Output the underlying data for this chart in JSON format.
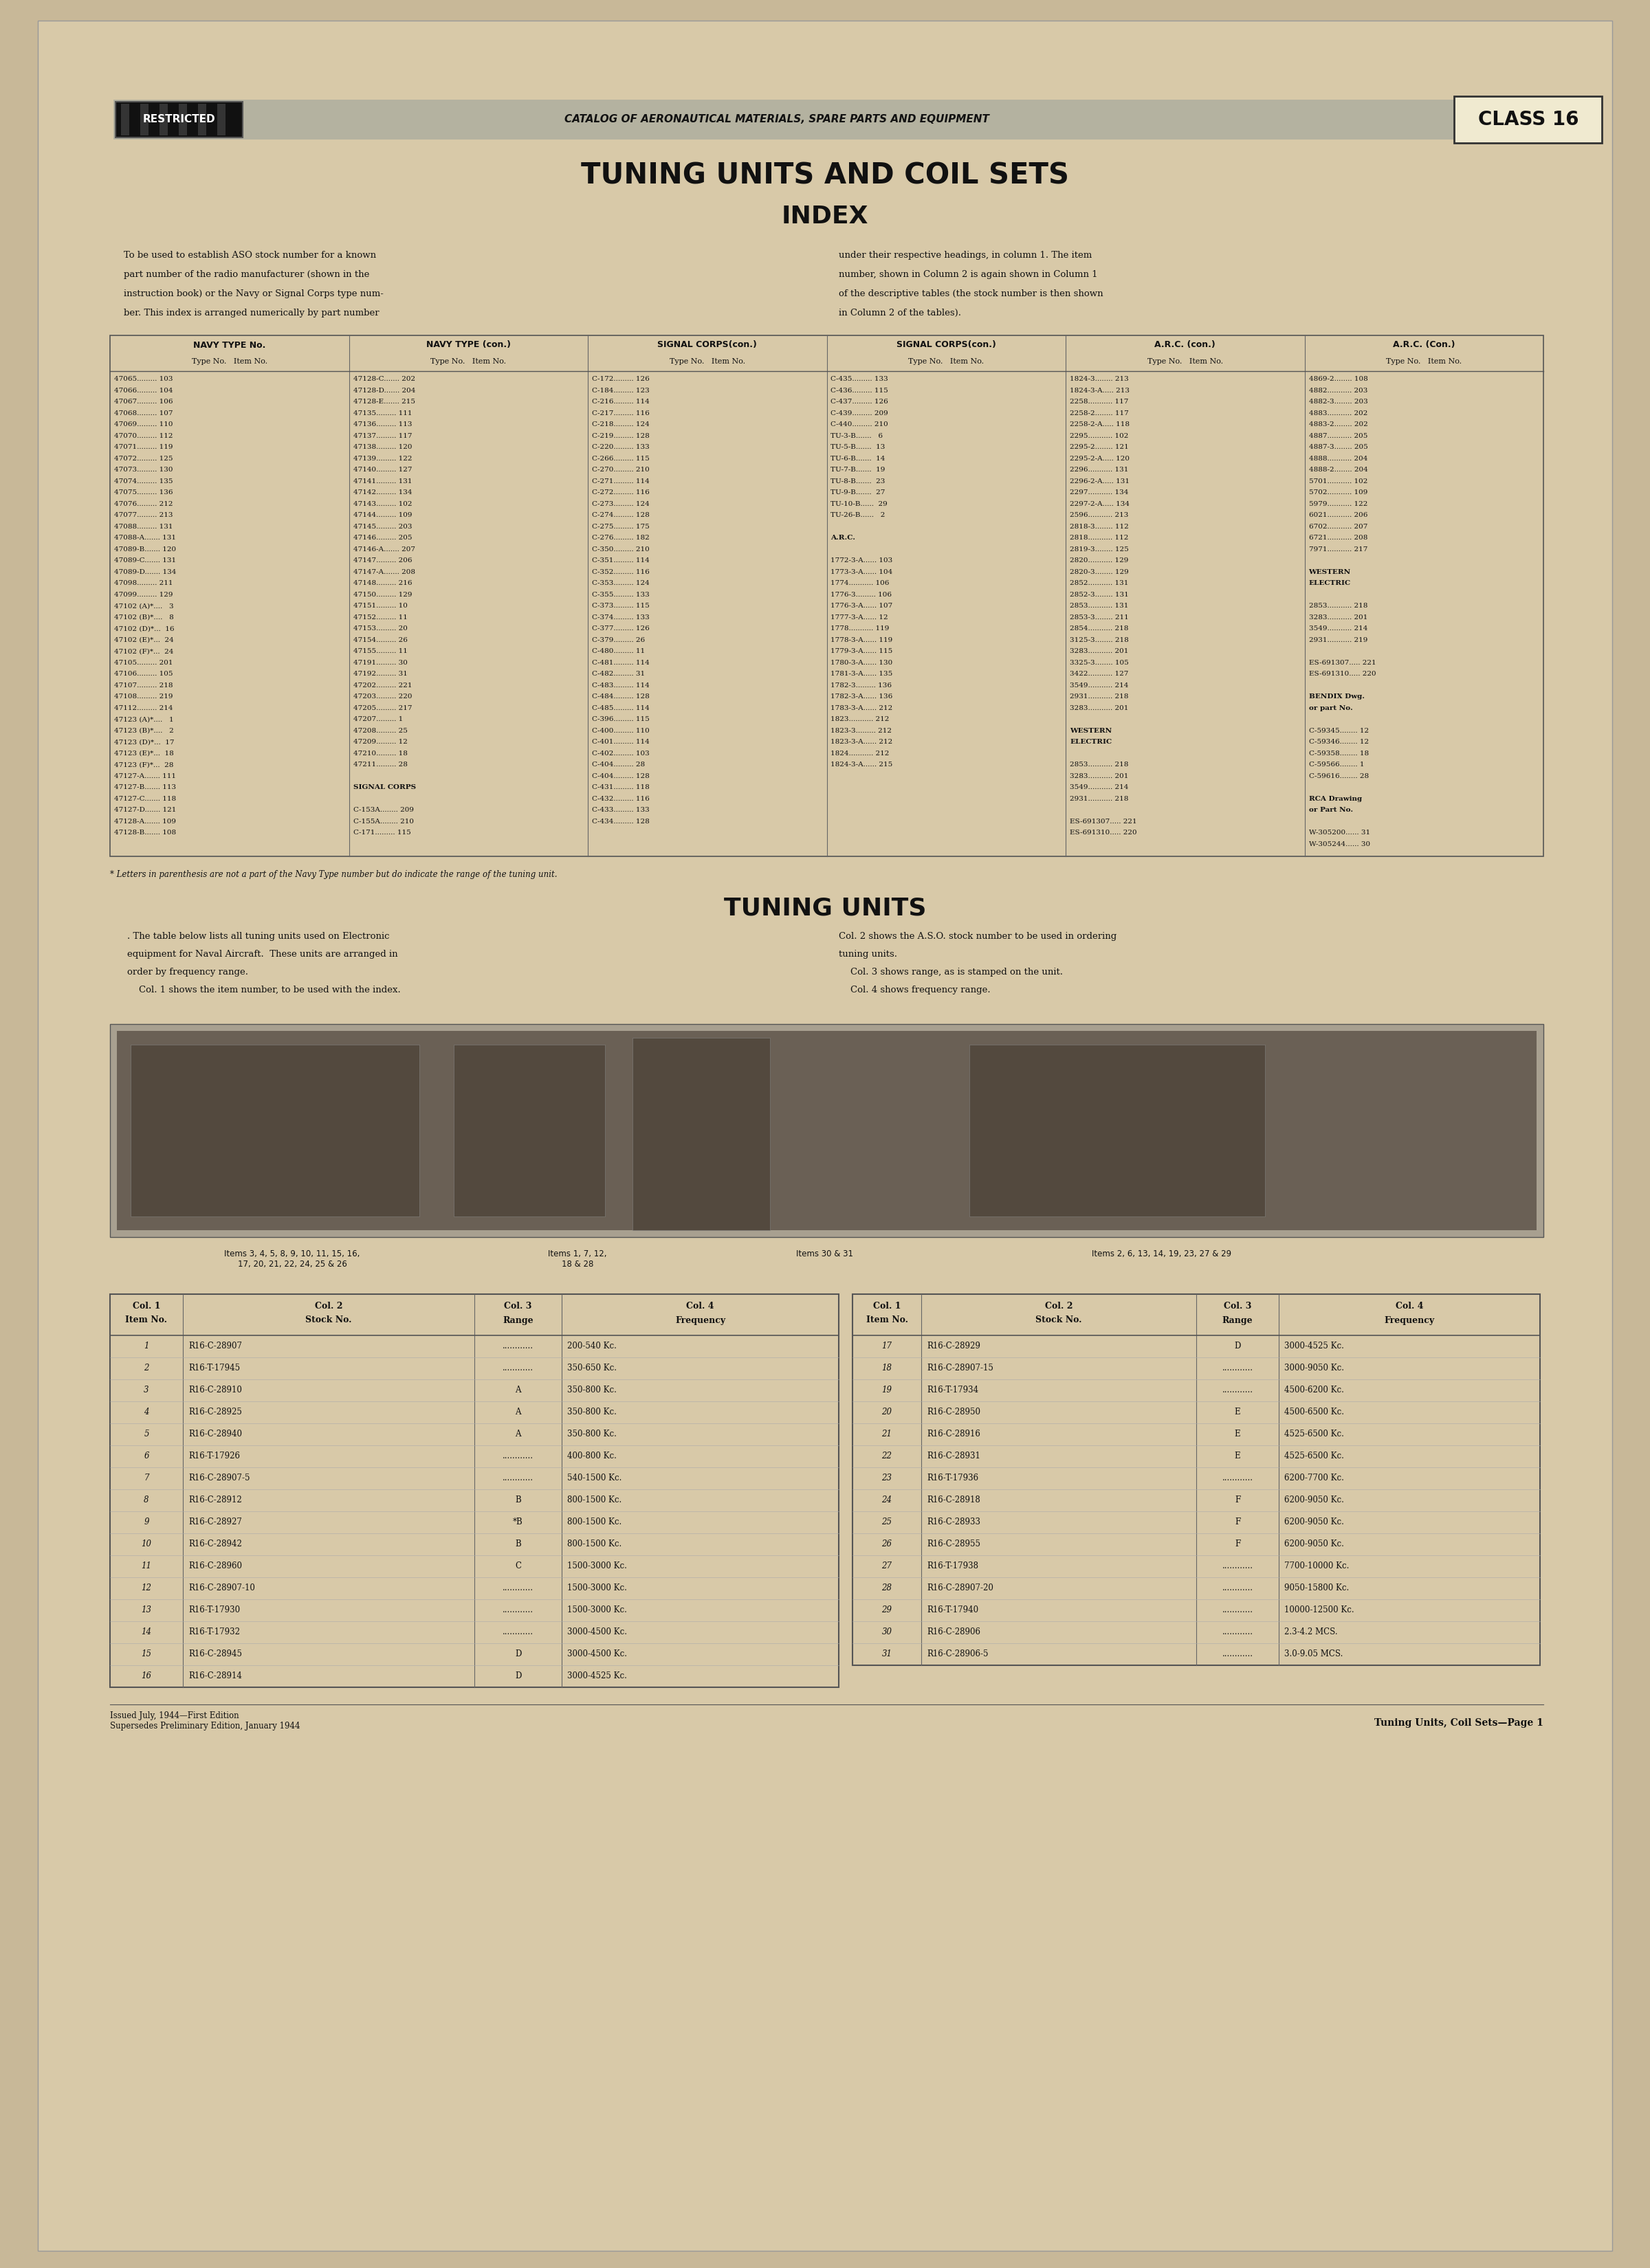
{
  "bg_color": "#c8b898",
  "paper_color": "#d8c9a8",
  "text_color": "#111111",
  "restricted_text": "RESTRICTED",
  "catalog_text": "CATALOG OF AERONAUTICAL MATERIALS, SPARE PARTS AND EQUIPMENT",
  "class_text": "CLASS 16",
  "title_main": "TUNING UNITS AND COIL SETS",
  "title_index": "INDEX",
  "title_tuning": "TUNING UNITS",
  "index_para1_lines": [
    "To be used to establish ASO stock number for a known",
    "part number of the radio manufacturer (shown in the",
    "instruction book) or the Navy or Signal Corps type num-",
    "ber. This index is arranged numerically by part number"
  ],
  "index_para2_lines": [
    "under their respective headings, in column 1. The item",
    "number, shown in Column 2 is again shown in Column 1",
    "of the descriptive tables (the stock number is then shown",
    "in Column 2 of the tables)."
  ],
  "table_headers": [
    "NAVY TYPE No.",
    "NAVY TYPE (con.)",
    "SIGNAL CORPS(con.)",
    "SIGNAL CORPS(con.)",
    "A.R.C. (con.)",
    "A.R.C. (Con.)"
  ],
  "col1_data": [
    "47065......... 103",
    "47066......... 104",
    "47067......... 106",
    "47068......... 107",
    "47069......... 110",
    "47070......... 112",
    "47071......... 119",
    "47072......... 125",
    "47073......... 130",
    "47074......... 135",
    "47075......... 136",
    "47076......... 212",
    "47077......... 213",
    "47088......... 131",
    "47088-A....... 131",
    "47089-B....... 120",
    "47089-C....... 131",
    "47089-D....... 134",
    "47098......... 211",
    "47099......... 129",
    "47102 (A)*....   3",
    "47102 (B)*....   8",
    "47102 (D)*...  16",
    "47102 (E)*...  24",
    "47102 (F)*...  24",
    "47105......... 201",
    "47106......... 105",
    "47107......... 218",
    "47108......... 219",
    "47112......... 214",
    "47123 (A)*....   1",
    "47123 (B)*....   2",
    "47123 (D)*...  17",
    "47123 (E)*...  18",
    "47123 (F)*...  28",
    "47127-A....... 111",
    "47127-B....... 113",
    "47127-C....... 118",
    "47127-D....... 121",
    "47128-A....... 109",
    "47128-B....... 108"
  ],
  "col2_data": [
    "47128-C....... 202",
    "47128-D....... 204",
    "47128-E....... 215",
    "47135......... 111",
    "47136......... 113",
    "47137......... 117",
    "47138......... 120",
    "47139......... 122",
    "47140......... 127",
    "47141......... 131",
    "47142......... 134",
    "47143......... 102",
    "47144......... 109",
    "47145......... 203",
    "47146......... 205",
    "47146-A....... 207",
    "47147......... 206",
    "47147-A....... 208",
    "47148......... 216",
    "47150......... 129",
    "47151......... 10",
    "47152......... 11",
    "47153......... 20",
    "47154......... 26",
    "47155......... 11",
    "47191......... 30",
    "47192......... 31",
    "47202......... 221",
    "47203......... 220",
    "47205......... 217",
    "47207......... 1",
    "47208......... 25",
    "47209......... 12",
    "47210......... 18",
    "47211......... 28",
    "",
    "SIGNAL CORPS",
    "",
    "C-153A........ 209",
    "C-155A........ 210",
    "C-171......... 115"
  ],
  "col3_data": [
    "C-172......... 126",
    "C-184......... 123",
    "C-216......... 114",
    "C-217......... 116",
    "C-218......... 124",
    "C-219......... 128",
    "C-220......... 133",
    "C-266......... 115",
    "C-270......... 210",
    "C-271......... 114",
    "C-272......... 116",
    "C-273......... 124",
    "C-274......... 128",
    "C-275......... 175",
    "C-276......... 182",
    "C-350......... 210",
    "C-351......... 114",
    "C-352......... 116",
    "C-353......... 124",
    "C-355......... 133",
    "C-373......... 115",
    "C-374......... 133",
    "C-377......... 126",
    "C-379......... 26",
    "C-480......... 11",
    "C-481......... 114",
    "C-482......... 31",
    "C-483......... 114",
    "C-484......... 128",
    "C-485......... 114",
    "C-396......... 115",
    "C-400......... 110",
    "C-401......... 114",
    "C-402......... 103",
    "C-404......... 28",
    "C-404......... 128",
    "C-431......... 118",
    "C-432......... 116",
    "C-433......... 133",
    "C-434......... 128"
  ],
  "col4_data": [
    "C-435......... 133",
    "C-436......... 115",
    "C-437......... 126",
    "C-439......... 209",
    "C-440......... 210",
    "TU-3-B.......   6",
    "TU-5-B.......  13",
    "TU-6-B.......  14",
    "TU-7-B.......  19",
    "TU-8-B.......  23",
    "TU-9-B.......  27",
    "TU-10-B......  29",
    "TU-26-B......   2",
    "",
    "A.R.C.",
    "",
    "1772-3-A...... 103",
    "1773-3-A...... 104",
    "1774........... 106",
    "1776-3......... 106",
    "1776-3-A...... 107",
    "1777-3-A...... 12",
    "1778........... 119",
    "1778-3-A...... 119",
    "1779-3-A...... 115",
    "1780-3-A...... 130",
    "1781-3-A...... 135",
    "1782-3......... 136",
    "1782-3-A...... 136",
    "1783-3-A...... 212",
    "1823........... 212",
    "1823-3......... 212",
    "1823-3-A...... 212",
    "1824........... 212",
    "1824-3-A...... 215"
  ],
  "col5_data": [
    "1824-3........ 213",
    "1824-3-A..... 213",
    "2258........... 117",
    "2258-2........ 117",
    "2258-2-A..... 118",
    "2295........... 102",
    "2295-2........ 121",
    "2295-2-A..... 120",
    "2296........... 131",
    "2296-2-A..... 131",
    "2297........... 134",
    "2297-2-A..... 134",
    "2596........... 213",
    "2818-3........ 112",
    "2818........... 112",
    "2819-3........ 125",
    "2820........... 129",
    "2820-3........ 129",
    "2852........... 131",
    "2852-3........ 131",
    "2853........... 131",
    "2853-3........ 211",
    "2854........... 218",
    "3125-3........ 218",
    "3283........... 201",
    "3325-3........ 105",
    "3422........... 127",
    "3549........... 214",
    "2931........... 218",
    "3283........... 201",
    "",
    "WESTERN",
    "ELECTRIC",
    "",
    "2853........... 218",
    "3283........... 201",
    "3549........... 214",
    "2931........... 218",
    "",
    "ES-691307..... 221",
    "ES-691310..... 220"
  ],
  "col6_data": [
    "4869-2........ 108",
    "4882........... 203",
    "4882-3........ 203",
    "4883........... 202",
    "4883-2........ 202",
    "4887........... 205",
    "4887-3........ 205",
    "4888........... 204",
    "4888-2........ 204",
    "5701........... 102",
    "5702........... 109",
    "5979........... 122",
    "6021........... 206",
    "6702........... 207",
    "6721........... 208",
    "7971........... 217",
    "",
    "WESTERN",
    "ELECTRIC",
    "",
    "2853........... 218",
    "3283........... 201",
    "3549........... 214",
    "2931........... 219",
    "",
    "ES-691307..... 221",
    "ES-691310..... 220",
    "",
    "BENDIX Dwg.",
    "or part No.",
    "",
    "C-59345........ 12",
    "C-59346........ 12",
    "C-59358........ 18",
    "C-59566........ 1",
    "C-59616........ 28",
    "",
    "RCA Drawing",
    "or Part No.",
    "",
    "W-305200...... 31",
    "W-305244...... 30"
  ],
  "footnote": "* Letters in parenthesis are not a part of the Navy Type number but do indicate the range of the tuning unit.",
  "tuning_para1_lines": [
    ". The table below lists all tuning units used on Electronic",
    "equipment for Naval Aircraft.  These units are arranged in",
    "order by frequency range.",
    "    Col. 1 shows the item number, to be used with the index."
  ],
  "tuning_para2_lines": [
    "Col. 2 shows the A.S.O. stock number to be used in ordering",
    "tuning units.",
    "    Col. 3 shows range, as is stamped on the unit.",
    "    Col. 4 shows frequency range."
  ],
  "items_label1": "Items 3, 4, 5, 8, 9, 10, 11, 15, 16,\n17, 20, 21, 22, 24, 25 & 26",
  "items_label2": "Items 1, 7, 12,\n18 & 28",
  "items_label3": "Items 30 & 31",
  "items_label4": "Items 2, 6, 13, 14, 19, 23, 27 & 29",
  "left_table_data": [
    [
      "1",
      "R16-C-28907",
      "............",
      "200-540 Kc."
    ],
    [
      "2",
      "R16-T-17945",
      "............",
      "350-650 Kc."
    ],
    [
      "3",
      "R16-C-28910",
      "A",
      "350-800 Kc."
    ],
    [
      "4",
      "R16-C-28925",
      "A",
      "350-800 Kc."
    ],
    [
      "5",
      "R16-C-28940",
      "A",
      "350-800 Kc."
    ],
    [
      "6",
      "R16-T-17926",
      "............",
      "400-800 Kc."
    ],
    [
      "7",
      "R16-C-28907-5",
      "............",
      "540-1500 Kc."
    ],
    [
      "8",
      "R16-C-28912",
      "B",
      "800-1500 Kc."
    ],
    [
      "9",
      "R16-C-28927",
      "*B",
      "800-1500 Kc."
    ],
    [
      "10",
      "R16-C-28942",
      "B",
      "800-1500 Kc."
    ],
    [
      "11",
      "R16-C-28960",
      "C",
      "1500-3000 Kc."
    ],
    [
      "12",
      "R16-C-28907-10",
      "............",
      "1500-3000 Kc."
    ],
    [
      "13",
      "R16-T-17930",
      "............",
      "1500-3000 Kc."
    ],
    [
      "14",
      "R16-T-17932",
      "............",
      "3000-4500 Kc."
    ],
    [
      "15",
      "R16-C-28945",
      "D",
      "3000-4500 Kc."
    ],
    [
      "16",
      "R16-C-28914",
      "D",
      "3000-4525 Kc."
    ]
  ],
  "right_table_data": [
    [
      "17",
      "R16-C-28929",
      "D",
      "3000-4525 Kc."
    ],
    [
      "18",
      "R16-C-28907-15",
      "............",
      "3000-9050 Kc."
    ],
    [
      "19",
      "R16-T-17934",
      "............",
      "4500-6200 Kc."
    ],
    [
      "20",
      "R16-C-28950",
      "E",
      "4500-6500 Kc."
    ],
    [
      "21",
      "R16-C-28916",
      "E",
      "4525-6500 Kc."
    ],
    [
      "22",
      "R16-C-28931",
      "E",
      "4525-6500 Kc."
    ],
    [
      "23",
      "R16-T-17936",
      "............",
      "6200-7700 Kc."
    ],
    [
      "24",
      "R16-C-28918",
      "F",
      "6200-9050 Kc."
    ],
    [
      "25",
      "R16-C-28933",
      "F",
      "6200-9050 Kc."
    ],
    [
      "26",
      "R16-C-28955",
      "F",
      "6200-9050 Kc."
    ],
    [
      "27",
      "R16-T-17938",
      "............",
      "7700-10000 Kc."
    ],
    [
      "28",
      "R16-C-28907-20",
      "............",
      "9050-15800 Kc."
    ],
    [
      "29",
      "R16-T-17940",
      "............",
      "10000-12500 Kc."
    ],
    [
      "30",
      "R16-C-28906",
      "............",
      "2.3-4.2 MCS."
    ],
    [
      "31",
      "R16-C-28906-5",
      "............",
      "3.0-9.05 MCS."
    ]
  ],
  "footer_left": "Issued July, 1944—First Edition\nSupersedes Preliminary Edition, January 1944",
  "footer_right": "Tuning Units, Coil Sets—Page 1"
}
